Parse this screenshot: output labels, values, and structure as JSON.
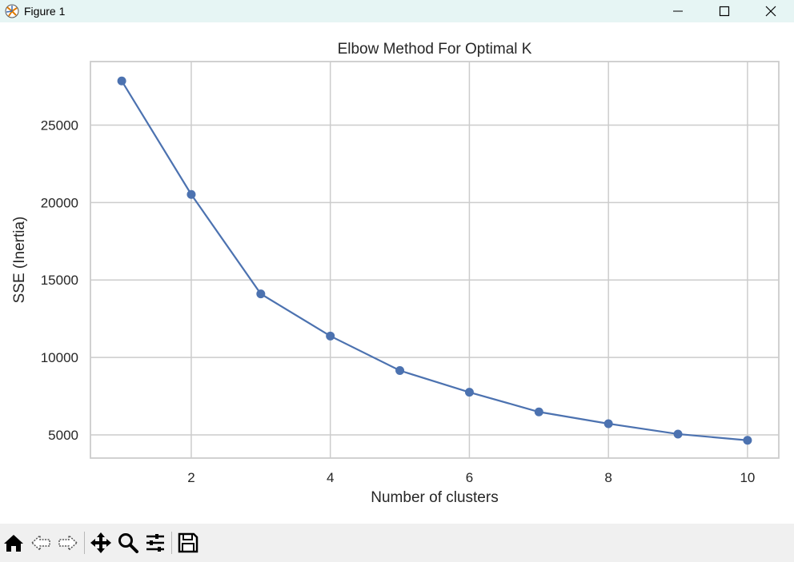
{
  "window": {
    "title": "Figure 1",
    "app_icon": "matplotlib-icon",
    "controls": [
      "minimize-icon",
      "maximize-icon",
      "close-icon"
    ]
  },
  "toolbar": {
    "buttons": [
      "home-icon",
      "back-icon",
      "forward-icon",
      "pan-icon",
      "zoom-icon",
      "configure-subplots-icon",
      "save-icon"
    ]
  },
  "chart_data": {
    "type": "line",
    "title": "Elbow Method For Optimal K",
    "xlabel": "Number of clusters",
    "ylabel": "SSE (Inertia)",
    "x": [
      1,
      2,
      3,
      4,
      5,
      6,
      7,
      8,
      9,
      10
    ],
    "series": [
      {
        "values": [
          27850,
          20520,
          14100,
          11380,
          9150,
          7750,
          6480,
          5720,
          5050,
          4650
        ],
        "color": "#4c72b0",
        "marker": "circle"
      }
    ],
    "xlim": [
      0.55,
      10.45
    ],
    "ylim": [
      3500,
      29100
    ],
    "xticks": [
      2,
      4,
      6,
      8,
      10
    ],
    "yticks": [
      5000,
      10000,
      15000,
      20000,
      25000
    ],
    "xtick_labels": [
      "2",
      "4",
      "6",
      "8",
      "10"
    ],
    "ytick_labels": [
      "5000",
      "10000",
      "15000",
      "20000",
      "25000"
    ],
    "grid": true,
    "grid_color": "#cccccc",
    "spine_color": "#cccccc"
  }
}
